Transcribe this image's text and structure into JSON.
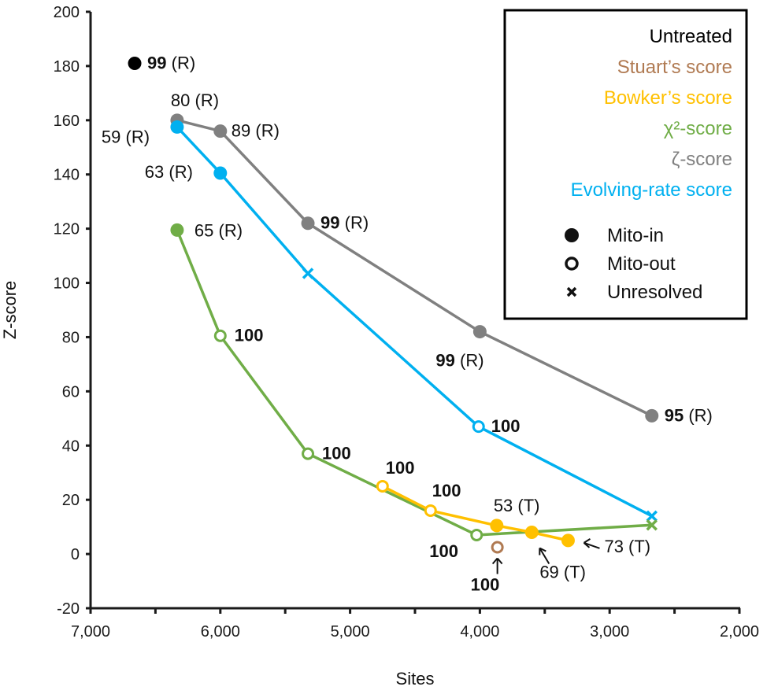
{
  "chart_data": {
    "type": "scatter",
    "title": "",
    "xlabel": "Sites",
    "ylabel": "Z-score",
    "xlim": [
      7000,
      2000
    ],
    "ylim": [
      -20,
      200
    ],
    "x_reversed": true,
    "x_ticks": [
      7000,
      6000,
      5000,
      4000,
      3000,
      2000
    ],
    "x_tick_labels": [
      "7,000",
      "6,000",
      "5,000",
      "4,000",
      "3,000",
      "2,000"
    ],
    "x_minor_ticks": [
      6500,
      5500,
      4500,
      3500,
      2500
    ],
    "y_ticks": [
      -20,
      0,
      20,
      40,
      60,
      80,
      100,
      120,
      140,
      160,
      180,
      200
    ],
    "y_tick_labels": [
      "-20",
      "0",
      "20",
      "40",
      "60",
      "80",
      "100",
      "120",
      "140",
      "160",
      "180",
      "200"
    ],
    "grid": false,
    "legend_position": "top-right",
    "legend": {
      "series_entries": [
        {
          "label": "Untreated",
          "color": "#000000"
        },
        {
          "label": "Stuart’s score",
          "color": "#B07A52"
        },
        {
          "label": "Bowker’s score",
          "color": "#FFC000"
        },
        {
          "label": "χ²-score",
          "color": "#70AD47"
        },
        {
          "label": "ζ-score",
          "color": "#808080"
        },
        {
          "label": "Evolving-rate score",
          "color": "#00B0F0"
        }
      ],
      "marker_entries": [
        {
          "label": "Mito-in",
          "marker": "filled"
        },
        {
          "label": "Mito-out",
          "marker": "open"
        },
        {
          "label": "Unresolved",
          "marker": "cross"
        }
      ]
    },
    "series": [
      {
        "name": "Untreated",
        "color": "#000000",
        "connected": false,
        "points": [
          {
            "x": 6660,
            "y": 181,
            "marker": "filled",
            "label_bold": "99",
            "label_rest": " (R)",
            "label_pos": "right"
          }
        ]
      },
      {
        "name": "ζ-score",
        "color": "#808080",
        "connected": true,
        "points": [
          {
            "x": 6333,
            "y": 160,
            "marker": "filled",
            "label_bold": "",
            "label_rest": "80 (R)",
            "label_pos": "above"
          },
          {
            "x": 6000,
            "y": 156,
            "marker": "filled",
            "label_bold": "",
            "label_rest": "89 (R)",
            "label_pos": "right"
          },
          {
            "x": 5325,
            "y": 122,
            "marker": "filled",
            "label_bold": "99",
            "label_rest": " (R)",
            "label_pos": "right"
          },
          {
            "x": 4000,
            "y": 82,
            "marker": "filled",
            "label_bold": "99",
            "label_rest": " (R)",
            "label_pos": "below-left"
          },
          {
            "x": 2675,
            "y": 51,
            "marker": "filled",
            "label_bold": "95",
            "label_rest": " (R)",
            "label_pos": "right"
          }
        ]
      },
      {
        "name": "Evolving-rate score",
        "color": "#00B0F0",
        "connected": true,
        "points": [
          {
            "x": 6333,
            "y": 157.5,
            "marker": "filled",
            "label_bold": "",
            "label_rest": "59 (R)",
            "label_pos": "left"
          },
          {
            "x": 6000,
            "y": 140.5,
            "marker": "filled",
            "label_bold": "",
            "label_rest": "63 (R)",
            "label_pos": "left"
          },
          {
            "x": 5325,
            "y": 103.5,
            "marker": "cross",
            "label_bold": "",
            "label_rest": "",
            "label_pos": "none"
          },
          {
            "x": 4010,
            "y": 47,
            "marker": "open",
            "label_bold": "100",
            "label_rest": "",
            "label_pos": "right"
          },
          {
            "x": 2675,
            "y": 14,
            "marker": "cross",
            "label_bold": "",
            "label_rest": "",
            "label_pos": "none"
          }
        ]
      },
      {
        "name": "χ²-score",
        "color": "#70AD47",
        "connected": true,
        "points": [
          {
            "x": 6333,
            "y": 119.5,
            "marker": "filled",
            "label_bold": "",
            "label_rest": "65 (R)",
            "label_pos": "right"
          },
          {
            "x": 6000,
            "y": 80.5,
            "marker": "open",
            "label_bold": "100",
            "label_rest": "",
            "label_pos": "right"
          },
          {
            "x": 5325,
            "y": 37,
            "marker": "open",
            "label_bold": "100",
            "label_rest": "",
            "label_pos": "right"
          },
          {
            "x": 4025,
            "y": 7,
            "marker": "open",
            "label_bold": "100",
            "label_rest": "",
            "label_pos": "below-left"
          },
          {
            "x": 2675,
            "y": 10.7,
            "marker": "cross",
            "label_bold": "",
            "label_rest": "",
            "label_pos": "none"
          }
        ]
      },
      {
        "name": "Bowker’s score",
        "color": "#FFC000",
        "connected": true,
        "points": [
          {
            "x": 4750,
            "y": 25,
            "marker": "open",
            "label_bold": "100",
            "label_rest": "",
            "label_pos": "above-right"
          },
          {
            "x": 4380,
            "y": 16,
            "marker": "open",
            "label_bold": "100",
            "label_rest": "",
            "label_pos": "above-right"
          },
          {
            "x": 3870,
            "y": 10.5,
            "marker": "filled",
            "label_bold": "",
            "label_rest": "53 (T)",
            "label_pos": "above"
          },
          {
            "x": 3600,
            "y": 8,
            "marker": "filled",
            "label_bold": "",
            "label_rest": "69 (T)",
            "label_pos": "arrow-below"
          },
          {
            "x": 3320,
            "y": 5,
            "marker": "filled",
            "label_bold": "",
            "label_rest": "73 (T)",
            "label_pos": "arrow-right"
          }
        ]
      },
      {
        "name": "Stuart’s score",
        "color": "#B07A52",
        "connected": false,
        "points": [
          {
            "x": 3865,
            "y": 2.5,
            "marker": "open",
            "label_bold": "100",
            "label_rest": "",
            "label_pos": "arrow-below"
          }
        ]
      }
    ]
  }
}
